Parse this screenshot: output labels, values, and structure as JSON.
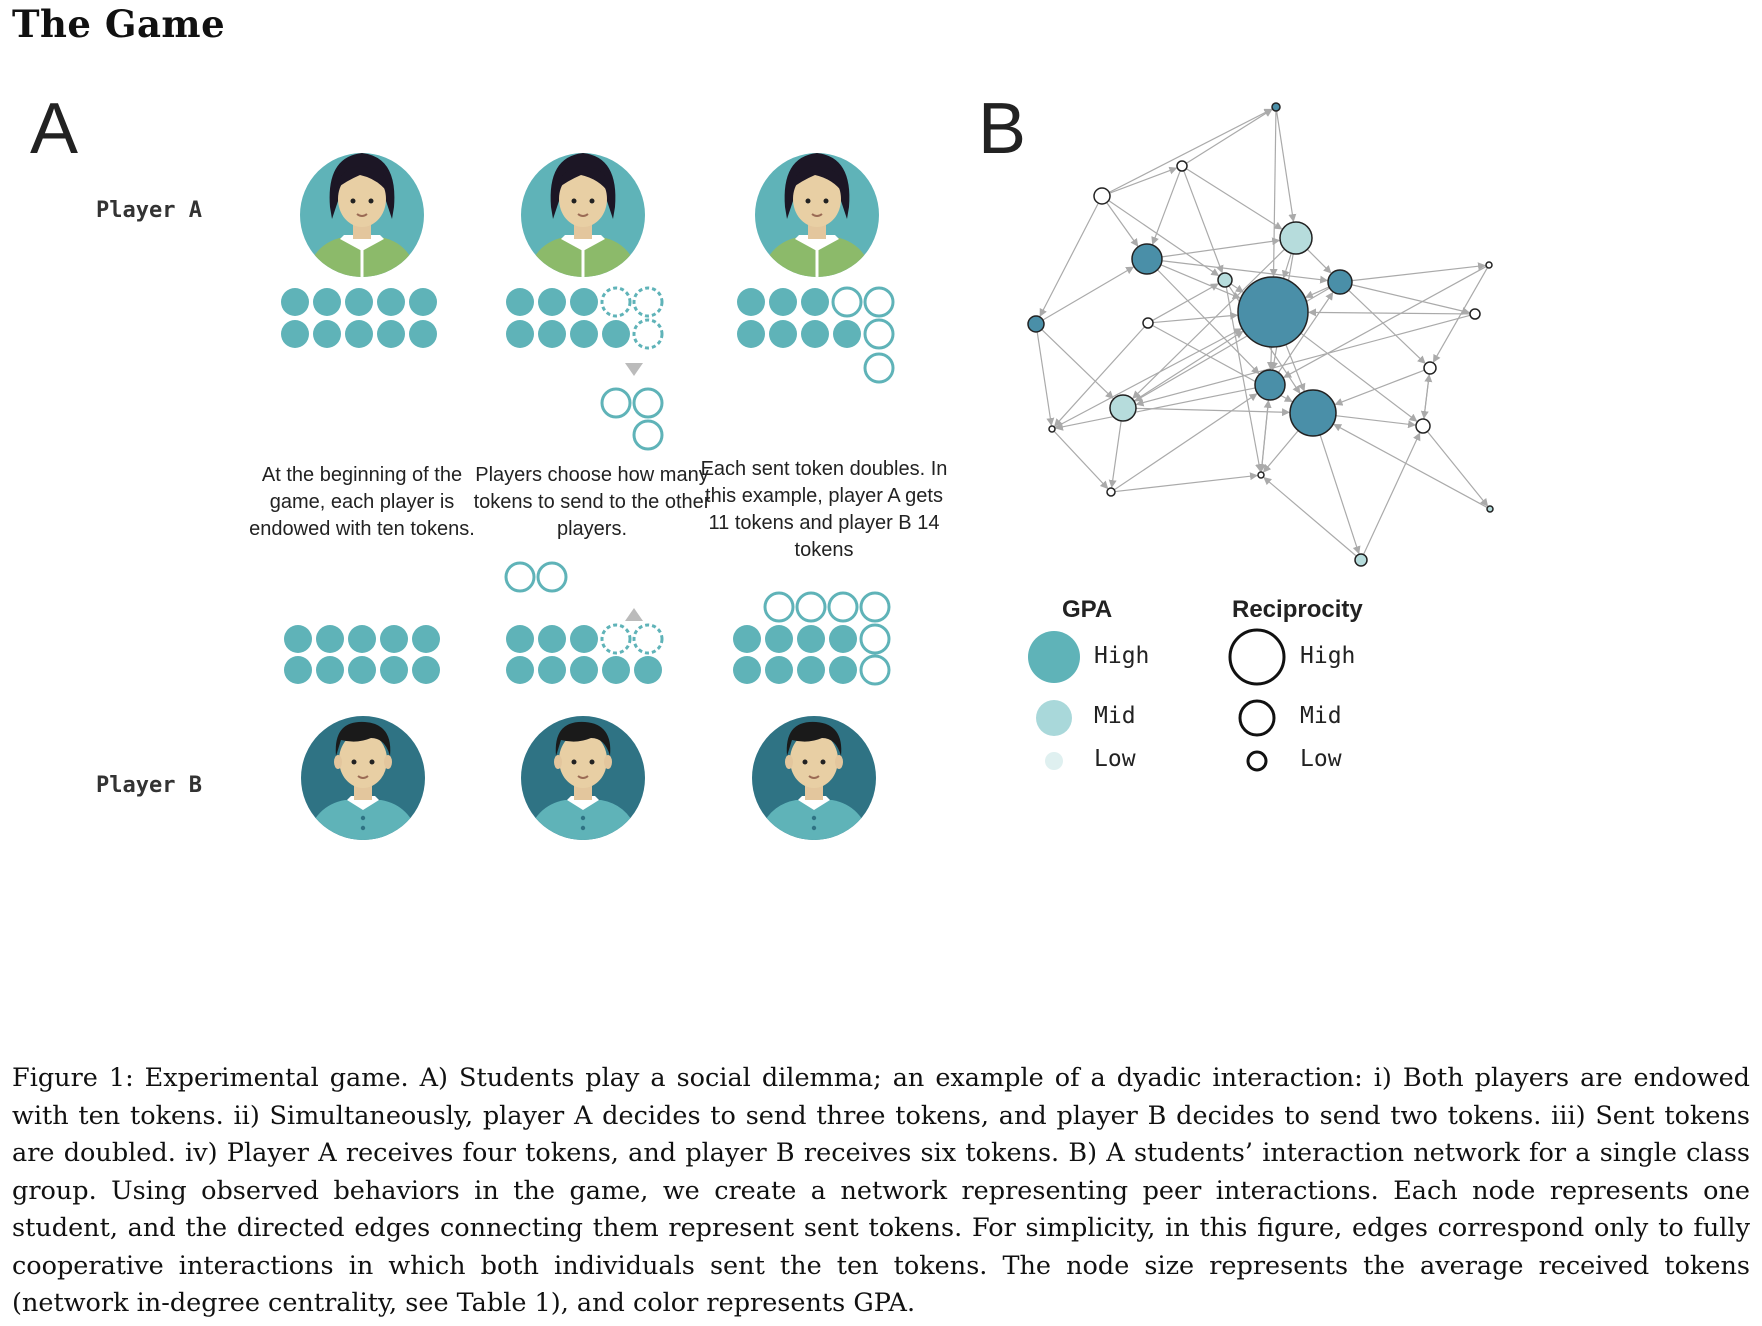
{
  "heading": "The Game",
  "panel_a": {
    "letter": "A",
    "player_a_label": "Player A",
    "player_b_label": "Player B",
    "steps": [
      "At the beginning of the game, each player is endowed with ten tokens.",
      "Players choose how many tokens to send to the other players.",
      "Each sent token doubles. In this example, player A gets 11 tokens and player B 14 tokens"
    ]
  },
  "panel_b": {
    "letter": "B",
    "legend": {
      "gpa_title": "GPA",
      "reciprocity_title": "Reciprocity",
      "levels": [
        "High",
        "Mid",
        "Low"
      ]
    }
  },
  "colors": {
    "token": "#5fb3b8",
    "node_high": "#4a8fa8",
    "node_mid": "#b6dcdc",
    "node_low": "#ffffff",
    "edge": "#aaaaaa"
  },
  "caption": "Figure 1: Experimental game. A) Students play a social dilemma; an example of a dyadic interaction: i) Both players are endowed with ten tokens. ii) Simultaneously, player A decides to send three tokens, and player B decides to send two tokens. iii) Sent tokens are doubled. iv) Player A receives four tokens, and player B receives six tokens. B) A students’ interaction network for a single class group. Using observed behaviors in the game, we create a network representing peer interactions. Each node represents one student, and the directed edges connecting them represent sent tokens. For simplicity, in this figure, edges correspond only to fully cooperative interactions in which both individuals sent the ten tokens. The node size represents the average received tokens (network in-degree centrality, see Table 1), and color represents GPA."
}
